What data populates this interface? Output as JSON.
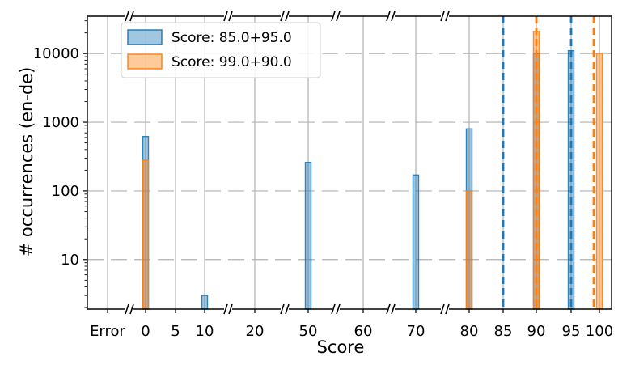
{
  "chart_data": {
    "type": "bar",
    "y_scale": "log",
    "xlabel": "Score",
    "ylabel": "# occurrences (en-de)",
    "grid": true,
    "legend_position": "top-left",
    "x_tick_labels": [
      "Error",
      "0",
      "5",
      "10",
      "20",
      "50",
      "60",
      "70",
      "80",
      "85",
      "90",
      "95",
      "100"
    ],
    "y_tick_labels": [
      "10",
      "100",
      "1000",
      "10000"
    ],
    "y_ticks": [
      10,
      100,
      1000,
      10000
    ],
    "ylim": [
      1.9,
      35000
    ],
    "series": [
      {
        "name": "Score: 85.0+95.0",
        "color": "#1f77b4",
        "bars": [
          {
            "x": "0",
            "value": 620
          },
          {
            "x": "10",
            "value": 3
          },
          {
            "x": "50",
            "value": 260
          },
          {
            "x": "70",
            "value": 170
          },
          {
            "x": "80",
            "value": 800
          },
          {
            "x": "90",
            "value": 10000
          },
          {
            "x": "95",
            "value": 11000
          }
        ],
        "vlines": [
          "85",
          "95"
        ]
      },
      {
        "name": "Score: 99.0+90.0",
        "color": "#ff7f0e",
        "bars": [
          {
            "x": "0",
            "value": 280
          },
          {
            "x": "80",
            "value": 100
          },
          {
            "x": "90",
            "value": 21000
          },
          {
            "x": "100",
            "value": 10000
          }
        ],
        "vlines": [
          "90",
          "99"
        ]
      }
    ]
  }
}
